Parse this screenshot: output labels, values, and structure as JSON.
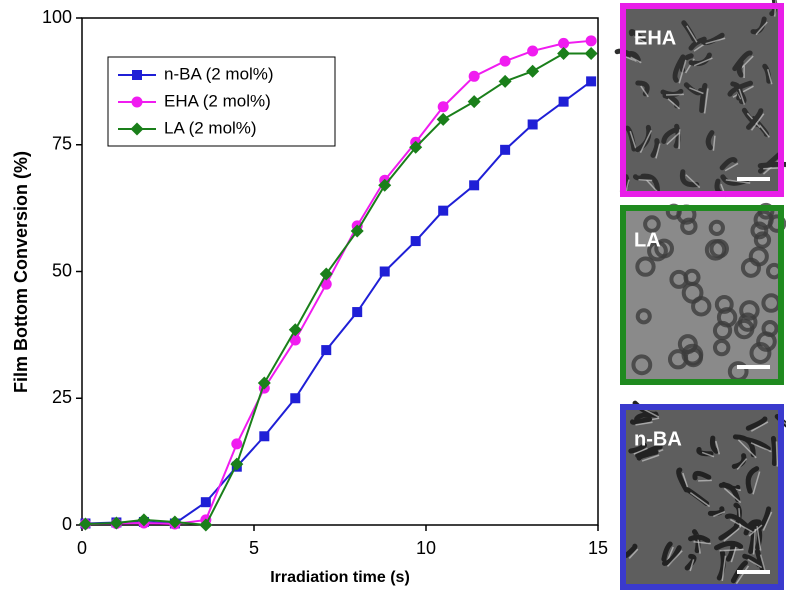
{
  "chart_data": {
    "type": "line",
    "xlabel": "Irradiation time (s)",
    "ylabel": "Film Bottom Conversion (%)",
    "x": [
      0.1,
      1.0,
      1.8,
      2.7,
      3.6,
      4.5,
      5.3,
      6.2,
      7.1,
      8.0,
      8.8,
      9.7,
      10.5,
      11.4,
      12.3,
      13.1,
      14.0,
      14.8
    ],
    "series": [
      {
        "name": "n-BA (2 mol%)",
        "color": "#1f1fd6",
        "marker": "square",
        "values": [
          0.3,
          0.5,
          0.6,
          0.3,
          4.5,
          11.5,
          17.5,
          25,
          34.5,
          42,
          50,
          56,
          62,
          67,
          74,
          79,
          83.5,
          87.5
        ]
      },
      {
        "name": "EHA  (2 mol%)",
        "color": "#f01cf0",
        "marker": "circle",
        "values": [
          0.2,
          0.3,
          0.4,
          0.2,
          1,
          16,
          27,
          36.5,
          47.5,
          59,
          68,
          75.5,
          82.5,
          88.5,
          91.5,
          93.5,
          95,
          95.5
        ]
      },
      {
        "name": "LA  (2 mol%)",
        "color": "#1a7f1a",
        "marker": "diamond",
        "values": [
          0.2,
          0.4,
          1,
          0.6,
          0,
          12,
          28,
          38.5,
          49.5,
          58,
          67,
          74.5,
          80,
          83.5,
          87.5,
          89.5,
          93,
          93
        ]
      }
    ],
    "xlim": [
      0,
      15
    ],
    "xticks": [
      0,
      5,
      10,
      15
    ],
    "ylim": [
      0,
      100
    ],
    "yticks": [
      0,
      25,
      50,
      75,
      100
    ],
    "legend": "top-left"
  },
  "panels": [
    {
      "label": "EHA",
      "color": "#e81ee8"
    },
    {
      "label": "LA",
      "color": "#1f8a1f"
    },
    {
      "label": "n-BA",
      "color": "#3a3acd"
    }
  ]
}
